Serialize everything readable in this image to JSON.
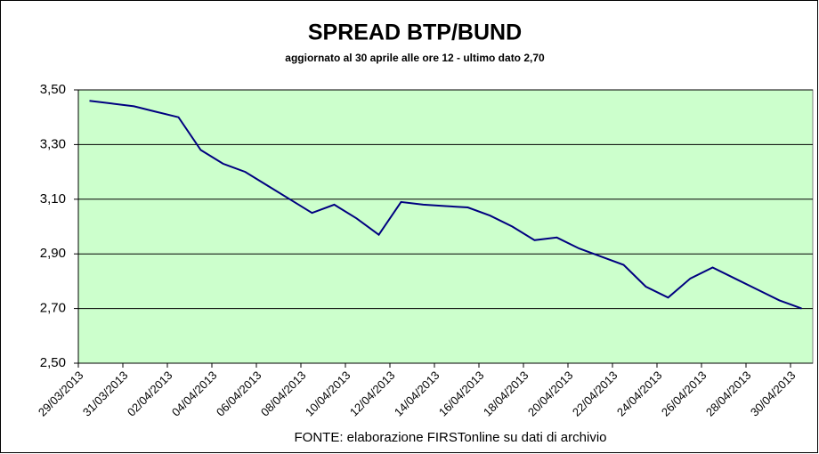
{
  "chart_data": {
    "type": "line",
    "title": "SPREAD  BTP/BUND",
    "subtitle": "aggiornato al 30 aprile alle ore 12 - ultimo dato 2,70",
    "source": "FONTE: elaborazione FIRSTonline su dati di archivio",
    "categories": [
      "29/03/2013",
      null,
      "31/03/2013",
      null,
      "02/04/2013",
      null,
      "04/04/2013",
      null,
      "06/04/2013",
      null,
      "08/04/2013",
      null,
      "10/04/2013",
      null,
      "12/04/2013",
      null,
      "14/04/2013",
      null,
      "16/04/2013",
      null,
      "18/04/2013",
      null,
      "20/04/2013",
      null,
      "22/04/2013",
      null,
      "24/04/2013",
      null,
      "26/04/2013",
      null,
      "28/04/2013",
      null,
      "30/04/2013"
    ],
    "series": [
      {
        "color": "#000080",
        "values": [
          3.46,
          3.45,
          3.44,
          3.42,
          3.4,
          3.28,
          3.23,
          3.2,
          3.15,
          3.1,
          3.05,
          3.08,
          3.03,
          2.97,
          3.09,
          3.08,
          3.075,
          3.07,
          3.04,
          3.0,
          2.95,
          2.96,
          2.92,
          2.89,
          2.86,
          2.78,
          2.74,
          2.81,
          2.85,
          2.81,
          2.77,
          2.73,
          2.7
        ]
      }
    ],
    "ylim": [
      2.5,
      3.5
    ],
    "yticks": [
      {
        "value": 2.5,
        "label": "2,50"
      },
      {
        "value": 2.7,
        "label": "2,70"
      },
      {
        "value": 2.9,
        "label": "2,90"
      },
      {
        "value": 3.1,
        "label": "3,10"
      },
      {
        "value": 3.3,
        "label": "3,30"
      },
      {
        "value": 3.5,
        "label": "3,50"
      }
    ],
    "grid": true,
    "plot_background": "#ccffcc"
  }
}
